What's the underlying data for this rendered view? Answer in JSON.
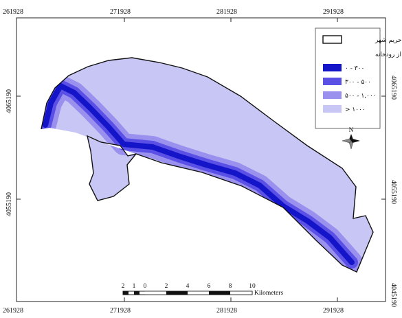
{
  "map": {
    "coords_top": [
      "261928",
      "271928",
      "281928",
      "291928"
    ],
    "coords_bottom": [
      "261928",
      "271928",
      "281928",
      "291928"
    ],
    "coords_left": [
      "4065190",
      "4055190"
    ],
    "coords_right": [
      "4065190",
      "4055190",
      "4045190"
    ],
    "legend": {
      "boundary_label": "حریم شهر",
      "subtitle": "فاصله از رودخانه",
      "items": [
        {
          "label": "۰ - ۳۰۰",
          "color": "#1414c8"
        },
        {
          "label": "۳۰۰ - ۵۰۰",
          "color": "#5a50e6"
        },
        {
          "label": "۵۰۰ - ۱,۰۰۰",
          "color": "#9a90ee"
        },
        {
          "label": "> ۱۰۰۰",
          "color": "#c8c6f4"
        }
      ]
    },
    "north_label": "N",
    "scale": {
      "ticks": [
        "2",
        "1",
        "0",
        "2",
        "4",
        "6",
        "8",
        "10"
      ],
      "unit": "Kilometers"
    }
  }
}
